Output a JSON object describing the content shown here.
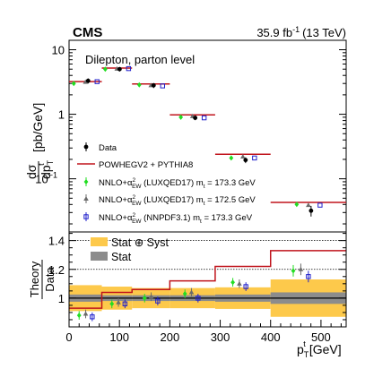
{
  "header": {
    "experiment": "CMS",
    "luminosity": "35.9 fb",
    "lumi_exp": "-1",
    "energy": "(13 TeV)"
  },
  "chart_data": [
    {
      "type": "scatter",
      "title": "Dilepton, parton level",
      "yscale": "log",
      "ylim": [
        0.015,
        14
      ],
      "xlim": [
        0,
        550
      ],
      "ylabel": "dσ / dp_T^t [pb/GeV]",
      "yticks": [
        "10",
        "1",
        "10"
      ],
      "yticks_exp": [
        "",
        "",
        "−1"
      ],
      "bins": [
        [
          0,
          65
        ],
        [
          65,
          125
        ],
        [
          125,
          200
        ],
        [
          200,
          290
        ],
        [
          290,
          400
        ],
        [
          400,
          550
        ]
      ],
      "series": [
        {
          "name": "Data",
          "color": "#000000",
          "marker": "circle",
          "values": [
            3.3,
            5.0,
            2.8,
            0.88,
            0.195,
            0.032
          ],
          "err_low": [
            0.3,
            0.4,
            0.25,
            0.07,
            0.02,
            0.006
          ],
          "err_high": [
            0.3,
            0.4,
            0.25,
            0.07,
            0.02,
            0.006
          ]
        },
        {
          "name": "POWHEGV2 + PYTHIA8",
          "color": "#c0141c",
          "marker": "step",
          "values": [
            3.2,
            5.2,
            2.95,
            0.98,
            0.24,
            0.043
          ]
        },
        {
          "name": "NNLO+α²_EW (LUXQED17) m_t = 173.3 GeV",
          "color": "#22dd22",
          "marker": "diamond",
          "values": [
            3.0,
            5.0,
            2.85,
            0.9,
            0.21,
            0.04
          ]
        },
        {
          "name": "NNLO+α²_EW (LUXQED17) m_t = 172.5 GeV",
          "color": "#6b6b6b",
          "marker": "triangle",
          "values": [
            3.15,
            5.05,
            2.8,
            0.93,
            0.22,
            0.039
          ]
        },
        {
          "name": "NNLO+α²_EW (NNPDF3.1) m_t = 173.3 GeV",
          "color": "#2222cc",
          "marker": "open-square",
          "values": [
            3.2,
            5.1,
            2.75,
            0.88,
            0.21,
            0.039
          ]
        }
      ],
      "legend": {
        "placement": "bottom-left",
        "entries": [
          "Data",
          "POWHEGV2 + PYTHIA8",
          "NNLO+α",
          "NNLO+α",
          "NNLO+α"
        ],
        "entry_suffix": [
          "",
          "",
          " (LUXQED17) m",
          " (LUXQED17) m",
          " (NNPDF3.1) m"
        ],
        "mass_values": [
          "",
          "",
          " = 173.3 GeV",
          " = 172.5 GeV",
          " = 173.3 GeV"
        ],
        "ew_sub": "EW",
        "ew_sup": "2",
        "t_sub": "t"
      }
    },
    {
      "type": "scatter",
      "ylabel_top": "Theory",
      "ylabel_bottom": "Data",
      "xlabel": "p",
      "xlabel_sub": "T",
      "xlabel_sup": "t",
      "xlabel_unit": "[GeV]",
      "ylim": [
        0.8,
        1.46
      ],
      "xlim": [
        0,
        550
      ],
      "yticks": [
        "1",
        "1.2",
        "1.4"
      ],
      "ytick_values": [
        1.0,
        1.2,
        1.4
      ],
      "xticks": [
        "0",
        "100",
        "200",
        "300",
        "400",
        "500"
      ],
      "xtick_values": [
        0,
        100,
        200,
        300,
        400,
        500
      ],
      "bins": [
        [
          0,
          65
        ],
        [
          65,
          125
        ],
        [
          125,
          200
        ],
        [
          200,
          290
        ],
        [
          290,
          400
        ],
        [
          400,
          550
        ]
      ],
      "band_stat_syst": {
        "color": "#fdc94b",
        "half_width": [
          0.09,
          0.08,
          0.07,
          0.07,
          0.075,
          0.13
        ]
      },
      "band_stat": {
        "color": "#8c8c8c",
        "half_width": [
          0.025,
          0.02,
          0.02,
          0.02,
          0.025,
          0.04
        ]
      },
      "legend": {
        "placement": "top-left",
        "entries": [
          "Stat ⊕ Syst",
          "Stat"
        ]
      },
      "series": [
        {
          "name": "POWHEGV2 + PYTHIA8",
          "color": "#c0141c",
          "marker": "step",
          "values": [
            0.93,
            1.04,
            1.06,
            1.12,
            1.22,
            1.33
          ]
        },
        {
          "color": "#22dd22",
          "marker": "diamond",
          "x": [
            20,
            85,
            150,
            230,
            325,
            445
          ],
          "values": [
            0.88,
            0.96,
            1.0,
            1.03,
            1.11,
            1.19
          ],
          "err": [
            0.03,
            0.03,
            0.03,
            0.03,
            0.03,
            0.04
          ]
        },
        {
          "color": "#6b6b6b",
          "marker": "triangle",
          "x": [
            33,
            98,
            163,
            243,
            338,
            460
          ],
          "values": [
            0.89,
            0.97,
            1.01,
            1.04,
            1.1,
            1.2
          ],
          "err": [
            0.03,
            0.03,
            0.03,
            0.03,
            0.03,
            0.04
          ]
        },
        {
          "color": "#2222cc",
          "marker": "open-square",
          "x": [
            46,
            111,
            176,
            256,
            351,
            475
          ],
          "values": [
            0.87,
            0.96,
            0.98,
            1.0,
            1.08,
            1.15
          ],
          "err": [
            0.03,
            0.03,
            0.03,
            0.03,
            0.03,
            0.04
          ]
        }
      ]
    }
  ]
}
